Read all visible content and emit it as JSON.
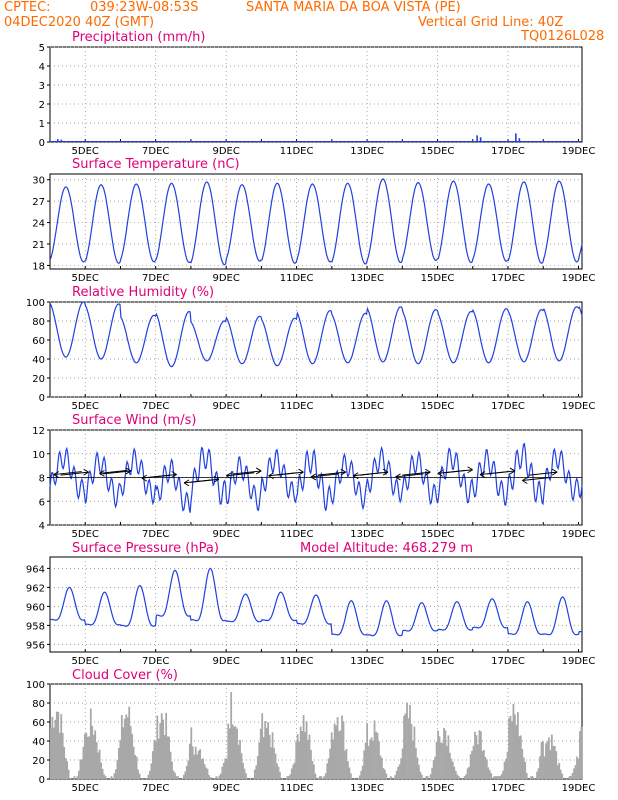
{
  "header": {
    "source": "CPTEC:",
    "coords": "039:23W-08:53S",
    "location": "SANTA MARIA DA BOA VISTA (PE)",
    "run": "04DEC2020 40Z (GMT)",
    "grid_line": "Vertical Grid Line: 40Z",
    "code": "TQ0126L028"
  },
  "colors": {
    "header": "#ff6a00",
    "title": "#e0007a",
    "series": "#2040e0",
    "cloud": "#a8a8a8"
  },
  "chart_data": [
    {
      "id": "precip",
      "type": "bar",
      "title": "Precipitation (mm/h)",
      "x_ticks": [
        "5DEC",
        "7DEC",
        "9DEC",
        "11DEC",
        "13DEC",
        "15DEC",
        "17DEC",
        "19DEC"
      ],
      "ylim": [
        0,
        5
      ],
      "yticks": [
        "0",
        "1",
        "2",
        "3",
        "4",
        "5"
      ],
      "grid": true,
      "bars": [
        {
          "day": 0.2,
          "v": 0.15
        },
        {
          "day": 0.3,
          "v": 0.12
        },
        {
          "day": 12.1,
          "v": 0.35
        },
        {
          "day": 12.2,
          "v": 0.25
        },
        {
          "day": 13.2,
          "v": 0.45
        },
        {
          "day": 13.3,
          "v": 0.2
        }
      ]
    },
    {
      "id": "temp",
      "type": "line",
      "title": "Surface Temperature (nC)",
      "x_ticks": [
        "5DEC",
        "7DEC",
        "9DEC",
        "11DEC",
        "13DEC",
        "15DEC",
        "17DEC",
        "19DEC"
      ],
      "ylim": [
        17.5,
        30.8
      ],
      "yticks": [
        "18",
        "21",
        "24",
        "27",
        "30"
      ],
      "grid": true,
      "daily_max": [
        29,
        29.3,
        29.4,
        29.5,
        29.7,
        29.3,
        29.5,
        29.4,
        29.5,
        30.1,
        29.6,
        29.8,
        29.4,
        29.7,
        29.8,
        29.5
      ],
      "daily_min": [
        18.5,
        18.3,
        18.5,
        18.4,
        18.1,
        18.6,
        18.3,
        18.5,
        18.2,
        18.4,
        18.7,
        18.4,
        18.6,
        18.3,
        18.5,
        18.8
      ]
    },
    {
      "id": "rh",
      "type": "line",
      "title": "Relative Humidity (%)",
      "x_ticks": [
        "5DEC",
        "7DEC",
        "9DEC",
        "11DEC",
        "13DEC",
        "15DEC",
        "17DEC",
        "19DEC"
      ],
      "ylim": [
        0,
        100
      ],
      "yticks": [
        "0",
        "20",
        "40",
        "60",
        "80",
        "100"
      ],
      "grid": true,
      "daily_max": [
        100,
        98,
        86,
        90,
        80,
        85,
        83,
        91,
        88,
        95,
        92,
        90,
        93,
        92,
        95,
        98
      ],
      "daily_min": [
        42,
        40,
        36,
        32,
        38,
        35,
        33,
        35,
        36,
        37,
        35,
        36,
        36,
        37,
        38,
        36
      ]
    },
    {
      "id": "wind",
      "type": "line",
      "title": "Surface Wind (m/s)",
      "x_ticks": [
        "5DEC",
        "7DEC",
        "9DEC",
        "11DEC",
        "13DEC",
        "15DEC",
        "17DEC",
        "19DEC"
      ],
      "ylim": [
        4,
        12
      ],
      "yticks": [
        "4",
        "6",
        "8",
        "10",
        "12"
      ],
      "grid": true,
      "daily_max": [
        10.6,
        10.2,
        10.4,
        9.6,
        10.8,
        9.8,
        10.4,
        10.6,
        10.0,
        10.5,
        10.3,
        10.6,
        10.4,
        11.0,
        10.6,
        10.0
      ],
      "daily_min": [
        6.0,
        5.5,
        5.8,
        4.8,
        5.6,
        5.2,
        5.8,
        5.0,
        5.4,
        5.9,
        5.5,
        5.8,
        5.6,
        5.5,
        6.0,
        5.8
      ],
      "arrows": [
        {
          "day": 0.3,
          "v": 8.2,
          "dir": 1
        },
        {
          "day": 0.9,
          "v": 8.5,
          "dir": -1
        },
        {
          "day": 1.5,
          "v": 8.3,
          "dir": 1
        },
        {
          "day": 2.2,
          "v": 8.6,
          "dir": -1
        },
        {
          "day": 2.8,
          "v": 8.0,
          "dir": 1
        },
        {
          "day": 3.4,
          "v": 8.2,
          "dir": -1
        },
        {
          "day": 4.0,
          "v": 7.6,
          "dir": 1
        },
        {
          "day": 4.6,
          "v": 7.8,
          "dir": -1
        },
        {
          "day": 5.2,
          "v": 8.3,
          "dir": 1
        },
        {
          "day": 5.8,
          "v": 8.4,
          "dir": -1
        },
        {
          "day": 6.4,
          "v": 8.2,
          "dir": 1
        },
        {
          "day": 7.0,
          "v": 8.4,
          "dir": -1
        },
        {
          "day": 7.6,
          "v": 8.2,
          "dir": 1
        },
        {
          "day": 8.2,
          "v": 8.3,
          "dir": -1
        },
        {
          "day": 8.8,
          "v": 8.2,
          "dir": 1
        },
        {
          "day": 9.4,
          "v": 8.4,
          "dir": -1
        },
        {
          "day": 10.0,
          "v": 8.2,
          "dir": 1
        },
        {
          "day": 10.6,
          "v": 8.3,
          "dir": -1
        },
        {
          "day": 11.2,
          "v": 8.4,
          "dir": 1
        },
        {
          "day": 11.8,
          "v": 8.6,
          "dir": -1
        },
        {
          "day": 12.4,
          "v": 8.3,
          "dir": 1
        },
        {
          "day": 13.0,
          "v": 8.5,
          "dir": -1
        },
        {
          "day": 13.6,
          "v": 8.2,
          "dir": 1
        },
        {
          "day": 14.2,
          "v": 8.0,
          "dir": -1
        }
      ]
    },
    {
      "id": "pres",
      "type": "line",
      "title": "Surface Pressure (hPa)",
      "annotation": "Model Altitude: 468.279 m",
      "x_ticks": [
        "5DEC",
        "7DEC",
        "9DEC",
        "11DEC",
        "13DEC",
        "15DEC",
        "17DEC",
        "19DEC"
      ],
      "ylim": [
        955.2,
        965.2
      ],
      "yticks": [
        "956",
        "958",
        "960",
        "962",
        "964"
      ],
      "grid": true,
      "daily_max": [
        962.0,
        961.5,
        962.2,
        963.8,
        964.0,
        961.3,
        961.5,
        961.2,
        960.6,
        960.6,
        960.4,
        960.5,
        960.8,
        960.5,
        961.0,
        960.8
      ],
      "daily_min": [
        957.5,
        957.0,
        956.6,
        957.5,
        956.8,
        957.5,
        957.6,
        957.2,
        955.9,
        955.8,
        956.5,
        956.6,
        956.8,
        956.0,
        955.8,
        956.2
      ]
    },
    {
      "id": "cloud",
      "type": "bar",
      "title": "Cloud Cover (%)",
      "x_ticks": [
        "5DEC",
        "7DEC",
        "9DEC",
        "11DEC",
        "13DEC",
        "15DEC",
        "17DEC",
        "19DEC"
      ],
      "ylim": [
        0,
        100
      ],
      "yticks": [
        "0",
        "20",
        "40",
        "60",
        "80",
        "100"
      ],
      "grid": true,
      "daily_peak": [
        95,
        75,
        88,
        85,
        45,
        98,
        65,
        80,
        90,
        65,
        85,
        70,
        60,
        90,
        55,
        85
      ]
    }
  ]
}
